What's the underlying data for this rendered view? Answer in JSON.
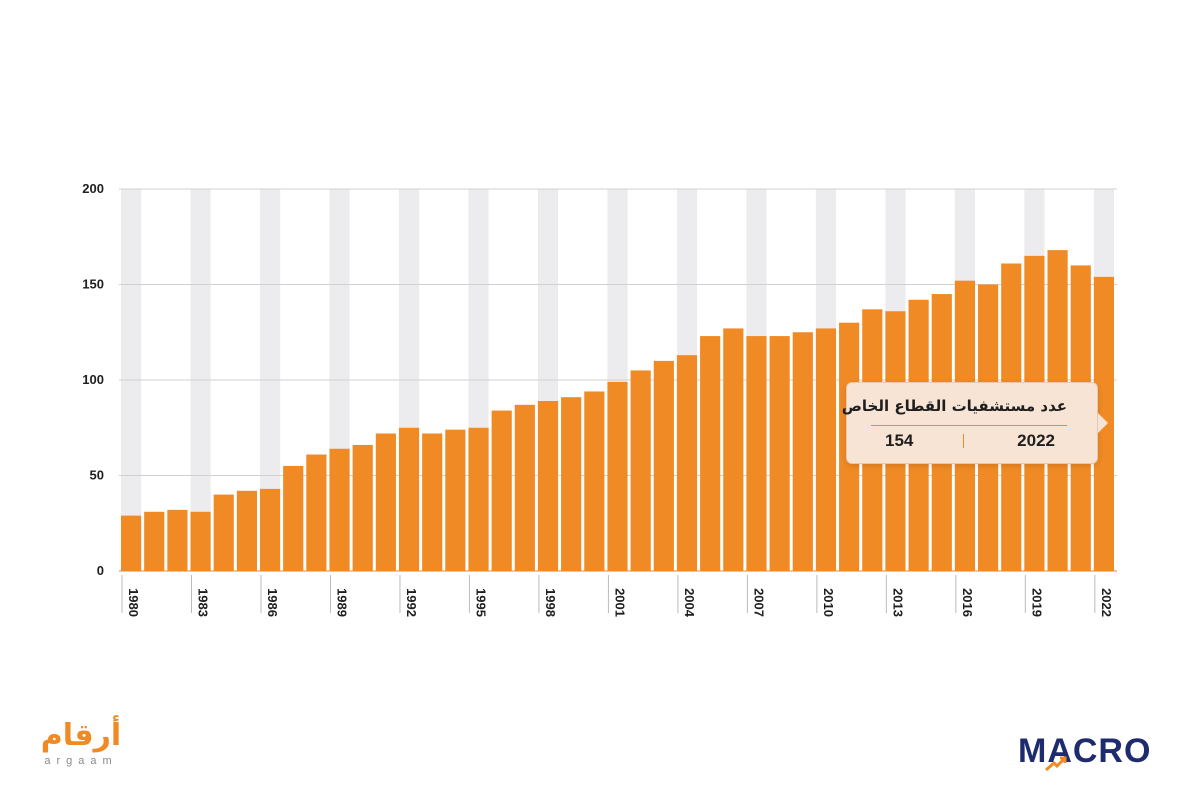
{
  "chart_data": {
    "type": "bar",
    "x": [
      1980,
      1981,
      1982,
      1983,
      1984,
      1985,
      1986,
      1987,
      1988,
      1989,
      1990,
      1991,
      1992,
      1993,
      1994,
      1995,
      1996,
      1997,
      1998,
      1999,
      2000,
      2001,
      2002,
      2003,
      2004,
      2005,
      2006,
      2007,
      2008,
      2009,
      2010,
      2011,
      2012,
      2013,
      2014,
      2015,
      2016,
      2017,
      2018,
      2019,
      2020,
      2021,
      2022
    ],
    "values": [
      29,
      31,
      32,
      31,
      40,
      42,
      43,
      55,
      61,
      64,
      66,
      72,
      75,
      72,
      74,
      75,
      84,
      87,
      89,
      91,
      94,
      99,
      105,
      110,
      113,
      123,
      127,
      123,
      123,
      125,
      127,
      130,
      137,
      136,
      142,
      145,
      152,
      150,
      161,
      165,
      168,
      160,
      154
    ],
    "x_tick_labels": [
      "1980",
      "1983",
      "1986",
      "1989",
      "1992",
      "1995",
      "1998",
      "2001",
      "2004",
      "2007",
      "2010",
      "2013",
      "2016",
      "2019",
      "2022"
    ],
    "y_tick_labels": [
      "0",
      "50",
      "100",
      "150",
      "200"
    ],
    "ylim": [
      0,
      200
    ],
    "grid": true,
    "bar_color": "#f08a24",
    "band_color": "#ececee",
    "tooltip": {
      "title": "عدد مستشفيات القطاع الخاص",
      "year": "2022",
      "value": "154"
    }
  },
  "logos": {
    "argaam_ar": "أرقام",
    "argaam_en": "argaam",
    "macro": "MACRO"
  },
  "colors": {
    "accent": "#f08a24",
    "brand_navy": "#1e2b6e"
  }
}
